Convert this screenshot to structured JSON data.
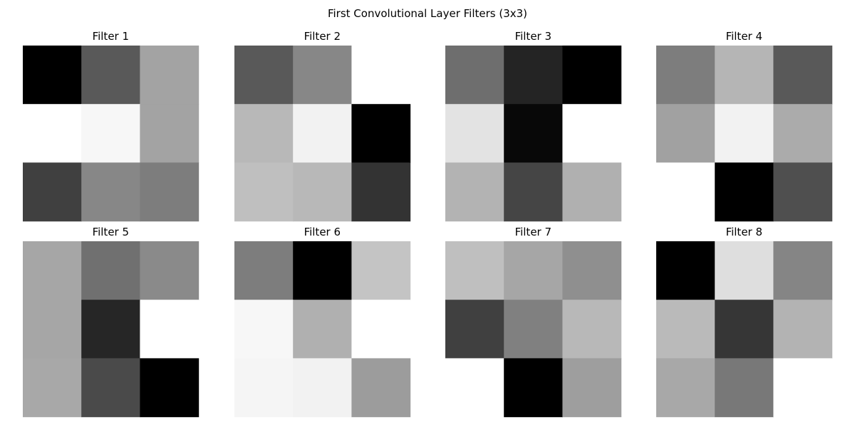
{
  "chart_data": {
    "type": "heatmap",
    "title": "First Convolutional Layer Filters (3x3)",
    "colormap": "gray",
    "axes_visible": false,
    "grid": false,
    "layout": {
      "rows": 2,
      "cols": 4
    },
    "filters": [
      {
        "title": "Filter 1",
        "values": [
          [
            0.0,
            0.35,
            0.64
          ],
          [
            1.0,
            0.97,
            0.64
          ],
          [
            0.25,
            0.53,
            0.49
          ]
        ]
      },
      {
        "title": "Filter 2",
        "values": [
          [
            0.35,
            0.53,
            1.0
          ],
          [
            0.72,
            0.95,
            0.0
          ],
          [
            0.75,
            0.72,
            0.2
          ]
        ]
      },
      {
        "title": "Filter 3",
        "values": [
          [
            0.43,
            0.14,
            0.0
          ],
          [
            0.89,
            0.03,
            1.0
          ],
          [
            0.7,
            0.27,
            0.69
          ]
        ]
      },
      {
        "title": "Filter 4",
        "values": [
          [
            0.49,
            0.71,
            0.35
          ],
          [
            0.63,
            0.95,
            0.67
          ],
          [
            1.0,
            0.0,
            0.31
          ]
        ]
      },
      {
        "title": "Filter 5",
        "values": [
          [
            0.65,
            0.44,
            0.54
          ],
          [
            0.65,
            0.15,
            1.0
          ],
          [
            0.66,
            0.29,
            0.0
          ]
        ]
      },
      {
        "title": "Filter 6",
        "values": [
          [
            0.49,
            0.0,
            0.77
          ],
          [
            0.97,
            0.69,
            1.0
          ],
          [
            0.96,
            0.95,
            0.61
          ]
        ]
      },
      {
        "title": "Filter 7",
        "values": [
          [
            0.75,
            0.65,
            0.56
          ],
          [
            0.25,
            0.5,
            0.72
          ],
          [
            1.0,
            0.0,
            0.62
          ]
        ]
      },
      {
        "title": "Filter 8",
        "values": [
          [
            0.0,
            0.87,
            0.52
          ],
          [
            0.73,
            0.21,
            0.7
          ],
          [
            0.66,
            0.47,
            1.0
          ]
        ]
      }
    ]
  }
}
